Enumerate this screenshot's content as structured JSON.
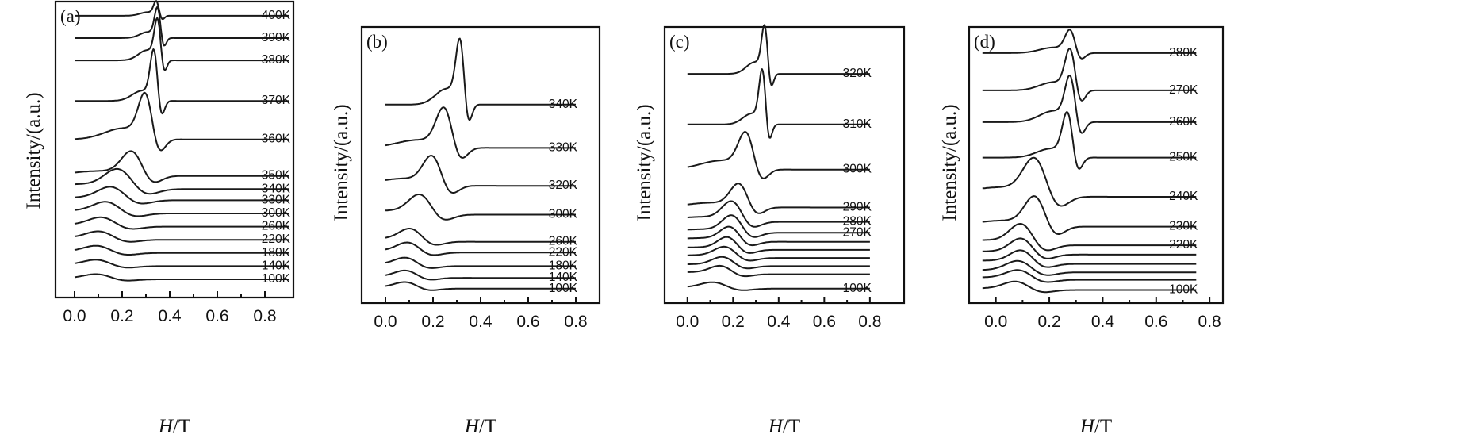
{
  "chart_data": [
    {
      "type": "line",
      "panel_label": "(a)",
      "xlabel": "H/T",
      "ylabel": "Intensity/(a.u.)",
      "xlim": [
        -0.08,
        0.92
      ],
      "x_ticks": [
        "0.0",
        "0.2",
        "0.4",
        "0.6",
        "0.8"
      ],
      "x_tick_values": [
        0.0,
        0.2,
        0.4,
        0.6,
        0.8
      ],
      "series": [
        {
          "name": "400K",
          "baseline": 14.9,
          "peak_x": 0.345,
          "amp": 0.7,
          "width": 0.012,
          "x_range": [
            0.0,
            0.9
          ],
          "x_end": 0.9
        },
        {
          "name": "390K",
          "baseline": 13.8,
          "peak_x": 0.35,
          "amp": 1.5,
          "width": 0.013,
          "x_range": [
            0.0,
            0.9
          ],
          "x_end": 0.9
        },
        {
          "name": "380K",
          "baseline": 12.7,
          "peak_x": 0.35,
          "amp": 2.0,
          "width": 0.014,
          "x_range": [
            0.0,
            0.9
          ],
          "x_end": 0.9
        },
        {
          "name": "370K",
          "baseline": 10.7,
          "peak_x": 0.335,
          "amp": 2.5,
          "width": 0.016,
          "x_range": [
            0.0,
            0.9
          ],
          "x_end": 0.9
        },
        {
          "name": "360K",
          "baseline": 8.8,
          "peak_x": 0.3,
          "amp": 2.2,
          "width": 0.03,
          "x_range": [
            0.0,
            0.9
          ],
          "x_end": 0.9
        },
        {
          "name": "350K",
          "baseline": 7.0,
          "peak_x": 0.245,
          "amp": 1.2,
          "width": 0.045,
          "x_range": [
            0.0,
            0.9
          ],
          "x_end": 0.9
        },
        {
          "name": "340K",
          "baseline": 6.35,
          "peak_x": 0.19,
          "amp": 0.95,
          "width": 0.06,
          "x_range": [
            0.0,
            0.9
          ],
          "x_end": 0.9
        },
        {
          "name": "330K",
          "baseline": 5.8,
          "peak_x": 0.16,
          "amp": 0.65,
          "width": 0.06,
          "x_range": [
            0.0,
            0.9
          ],
          "x_end": 0.9
        },
        {
          "name": "300K",
          "baseline": 5.15,
          "peak_x": 0.14,
          "amp": 0.55,
          "width": 0.06,
          "x_range": [
            0.0,
            0.9
          ],
          "x_end": 0.9
        },
        {
          "name": "260K",
          "baseline": 4.5,
          "peak_x": 0.12,
          "amp": 0.45,
          "width": 0.06,
          "x_range": [
            0.0,
            0.9
          ],
          "x_end": 0.9
        },
        {
          "name": "220K",
          "baseline": 3.85,
          "peak_x": 0.11,
          "amp": 0.4,
          "width": 0.06,
          "x_range": [
            0.0,
            0.9
          ],
          "x_end": 0.9
        },
        {
          "name": "180K",
          "baseline": 3.2,
          "peak_x": 0.1,
          "amp": 0.35,
          "width": 0.06,
          "x_range": [
            0.0,
            0.9
          ],
          "x_end": 0.9
        },
        {
          "name": "140K",
          "baseline": 2.55,
          "peak_x": 0.1,
          "amp": 0.3,
          "width": 0.06,
          "x_range": [
            0.0,
            0.9
          ],
          "x_end": 0.9
        },
        {
          "name": "100K",
          "baseline": 1.9,
          "peak_x": 0.1,
          "amp": 0.25,
          "width": 0.06,
          "x_range": [
            0.0,
            0.9
          ],
          "x_end": 0.9
        }
      ]
    },
    {
      "type": "line",
      "panel_label": "(b)",
      "xlabel": "H/T",
      "ylabel": "Intensity/(a.u.)",
      "xlim": [
        -0.1,
        0.9
      ],
      "x_ticks": [
        "0.0",
        "0.2",
        "0.4",
        "0.6",
        "0.8"
      ],
      "x_tick_values": [
        0.0,
        0.2,
        0.4,
        0.6,
        0.8
      ],
      "series": [
        {
          "name": "340K",
          "baseline": 12.5,
          "peak_x": 0.315,
          "amp": 3.5,
          "width": 0.018,
          "x_range": [
            0.0,
            0.8
          ],
          "x_end": 0.8
        },
        {
          "name": "330K",
          "baseline": 10.1,
          "peak_x": 0.25,
          "amp": 2.2,
          "width": 0.035,
          "x_range": [
            0.0,
            0.8
          ],
          "x_end": 0.8
        },
        {
          "name": "320K",
          "baseline": 8.0,
          "peak_x": 0.2,
          "amp": 1.6,
          "width": 0.04,
          "x_range": [
            0.0,
            0.8
          ],
          "x_end": 0.8
        },
        {
          "name": "300K",
          "baseline": 6.4,
          "peak_x": 0.15,
          "amp": 1.1,
          "width": 0.05,
          "x_range": [
            0.0,
            0.8
          ],
          "x_end": 0.8
        },
        {
          "name": "260K",
          "baseline": 4.9,
          "peak_x": 0.11,
          "amp": 0.7,
          "width": 0.05,
          "x_range": [
            0.0,
            0.8
          ],
          "x_end": 0.8
        },
        {
          "name": "220K",
          "baseline": 4.3,
          "peak_x": 0.1,
          "amp": 0.55,
          "width": 0.05,
          "x_range": [
            0.0,
            0.8
          ],
          "x_end": 0.8
        },
        {
          "name": "180K",
          "baseline": 3.55,
          "peak_x": 0.09,
          "amp": 0.45,
          "width": 0.05,
          "x_range": [
            0.0,
            0.8
          ],
          "x_end": 0.8
        },
        {
          "name": "140K",
          "baseline": 2.9,
          "peak_x": 0.09,
          "amp": 0.4,
          "width": 0.05,
          "x_range": [
            0.0,
            0.8
          ],
          "x_end": 0.8
        },
        {
          "name": "100K",
          "baseline": 2.3,
          "peak_x": 0.09,
          "amp": 0.35,
          "width": 0.05,
          "x_range": [
            0.0,
            0.8
          ],
          "x_end": 0.8
        }
      ]
    },
    {
      "type": "line",
      "panel_label": "(c)",
      "xlabel": "H/T",
      "ylabel": "Intensity/(a.u.)",
      "xlim": [
        -0.1,
        0.95
      ],
      "x_ticks": [
        "0.0",
        "0.2",
        "0.4",
        "0.6",
        "0.8"
      ],
      "x_tick_values": [
        0.0,
        0.2,
        0.4,
        0.6,
        0.8
      ],
      "series": [
        {
          "name": "320K",
          "baseline": 14.2,
          "peak_x": 0.34,
          "amp": 2.6,
          "width": 0.014,
          "x_range": [
            0.0,
            0.8
          ],
          "x_end": 0.8
        },
        {
          "name": "310K",
          "baseline": 11.4,
          "peak_x": 0.33,
          "amp": 3.0,
          "width": 0.015,
          "x_range": [
            0.0,
            0.8
          ],
          "x_end": 0.8
        },
        {
          "name": "300K",
          "baseline": 8.9,
          "peak_x": 0.26,
          "amp": 2.0,
          "width": 0.035,
          "x_range": [
            0.0,
            0.8
          ],
          "x_end": 0.8
        },
        {
          "name": "290K",
          "baseline": 6.8,
          "peak_x": 0.23,
          "amp": 1.3,
          "width": 0.04,
          "x_range": [
            0.0,
            0.8
          ],
          "x_end": 0.8
        },
        {
          "name": "280K",
          "baseline": 6.0,
          "peak_x": 0.2,
          "amp": 1.1,
          "width": 0.045,
          "x_range": [
            0.0,
            0.8
          ],
          "x_end": 0.8
        },
        {
          "name": "270K",
          "baseline": 5.4,
          "peak_x": 0.2,
          "amp": 0.95,
          "width": 0.045,
          "x_range": [
            0.0,
            0.8
          ],
          "x_end": 0.8
        },
        {
          "name": "",
          "baseline": 4.9,
          "peak_x": 0.19,
          "amp": 0.8,
          "width": 0.045,
          "x_range": [
            0.0,
            0.8
          ],
          "x_end": 0.8
        },
        {
          "name": "",
          "baseline": 4.45,
          "peak_x": 0.18,
          "amp": 0.7,
          "width": 0.045,
          "x_range": [
            0.0,
            0.8
          ],
          "x_end": 0.8
        },
        {
          "name": "",
          "baseline": 4.0,
          "peak_x": 0.17,
          "amp": 0.6,
          "width": 0.05,
          "x_range": [
            0.0,
            0.8
          ],
          "x_end": 0.8
        },
        {
          "name": "",
          "baseline": 3.55,
          "peak_x": 0.16,
          "amp": 0.5,
          "width": 0.05,
          "x_range": [
            0.0,
            0.8
          ],
          "x_end": 0.8
        },
        {
          "name": "",
          "baseline": 3.1,
          "peak_x": 0.15,
          "amp": 0.45,
          "width": 0.05,
          "x_range": [
            0.0,
            0.8
          ],
          "x_end": 0.8
        },
        {
          "name": "100K",
          "baseline": 2.3,
          "peak_x": 0.12,
          "amp": 0.35,
          "width": 0.06,
          "x_range": [
            0.0,
            0.8
          ],
          "x_end": 0.8
        }
      ]
    },
    {
      "type": "line",
      "panel_label": "(d)",
      "xlabel": "H/T",
      "ylabel": "Intensity/(a.u.)",
      "xlim": [
        -0.1,
        0.85
      ],
      "x_ticks": [
        "0.0",
        "0.2",
        "0.4",
        "0.6",
        "0.8"
      ],
      "x_tick_values": [
        0.0,
        0.2,
        0.4,
        0.6,
        0.8
      ],
      "series": [
        {
          "name": "280K",
          "baseline": 14.6,
          "peak_x": 0.28,
          "amp": 1.2,
          "width": 0.02,
          "x_range": [
            -0.05,
            0.75
          ],
          "x_end": 0.75
        },
        {
          "name": "270K",
          "baseline": 12.6,
          "peak_x": 0.28,
          "amp": 2.2,
          "width": 0.02,
          "x_range": [
            -0.05,
            0.75
          ],
          "x_end": 0.75
        },
        {
          "name": "260K",
          "baseline": 10.9,
          "peak_x": 0.28,
          "amp": 2.4,
          "width": 0.02,
          "x_range": [
            -0.05,
            0.75
          ],
          "x_end": 0.75
        },
        {
          "name": "250K",
          "baseline": 9.0,
          "peak_x": 0.27,
          "amp": 2.4,
          "width": 0.02,
          "x_range": [
            -0.05,
            0.75
          ],
          "x_end": 0.75
        },
        {
          "name": "240K",
          "baseline": 6.9,
          "peak_x": 0.15,
          "amp": 2.0,
          "width": 0.045,
          "x_range": [
            -0.05,
            0.75
          ],
          "x_end": 0.75
        },
        {
          "name": "230K",
          "baseline": 5.3,
          "peak_x": 0.15,
          "amp": 1.6,
          "width": 0.04,
          "x_range": [
            -0.05,
            0.75
          ],
          "x_end": 0.75
        },
        {
          "name": "220K",
          "baseline": 4.3,
          "peak_x": 0.1,
          "amp": 1.1,
          "width": 0.045,
          "x_range": [
            -0.05,
            0.75
          ],
          "x_end": 0.75
        },
        {
          "name": "",
          "baseline": 3.8,
          "peak_x": 0.1,
          "amp": 0.85,
          "width": 0.045,
          "x_range": [
            -0.05,
            0.75
          ],
          "x_end": 0.75
        },
        {
          "name": "",
          "baseline": 3.3,
          "peak_x": 0.1,
          "amp": 0.7,
          "width": 0.045,
          "x_range": [
            -0.05,
            0.75
          ],
          "x_end": 0.75
        },
        {
          "name": "",
          "baseline": 2.85,
          "peak_x": 0.09,
          "amp": 0.6,
          "width": 0.05,
          "x_range": [
            -0.05,
            0.75
          ],
          "x_end": 0.75
        },
        {
          "name": "",
          "baseline": 2.45,
          "peak_x": 0.09,
          "amp": 0.5,
          "width": 0.05,
          "x_range": [
            -0.05,
            0.75
          ],
          "x_end": 0.75
        },
        {
          "name": "100K",
          "baseline": 1.9,
          "peak_x": 0.08,
          "amp": 0.45,
          "width": 0.05,
          "x_range": [
            -0.05,
            0.75
          ],
          "x_end": 0.75
        }
      ]
    }
  ]
}
